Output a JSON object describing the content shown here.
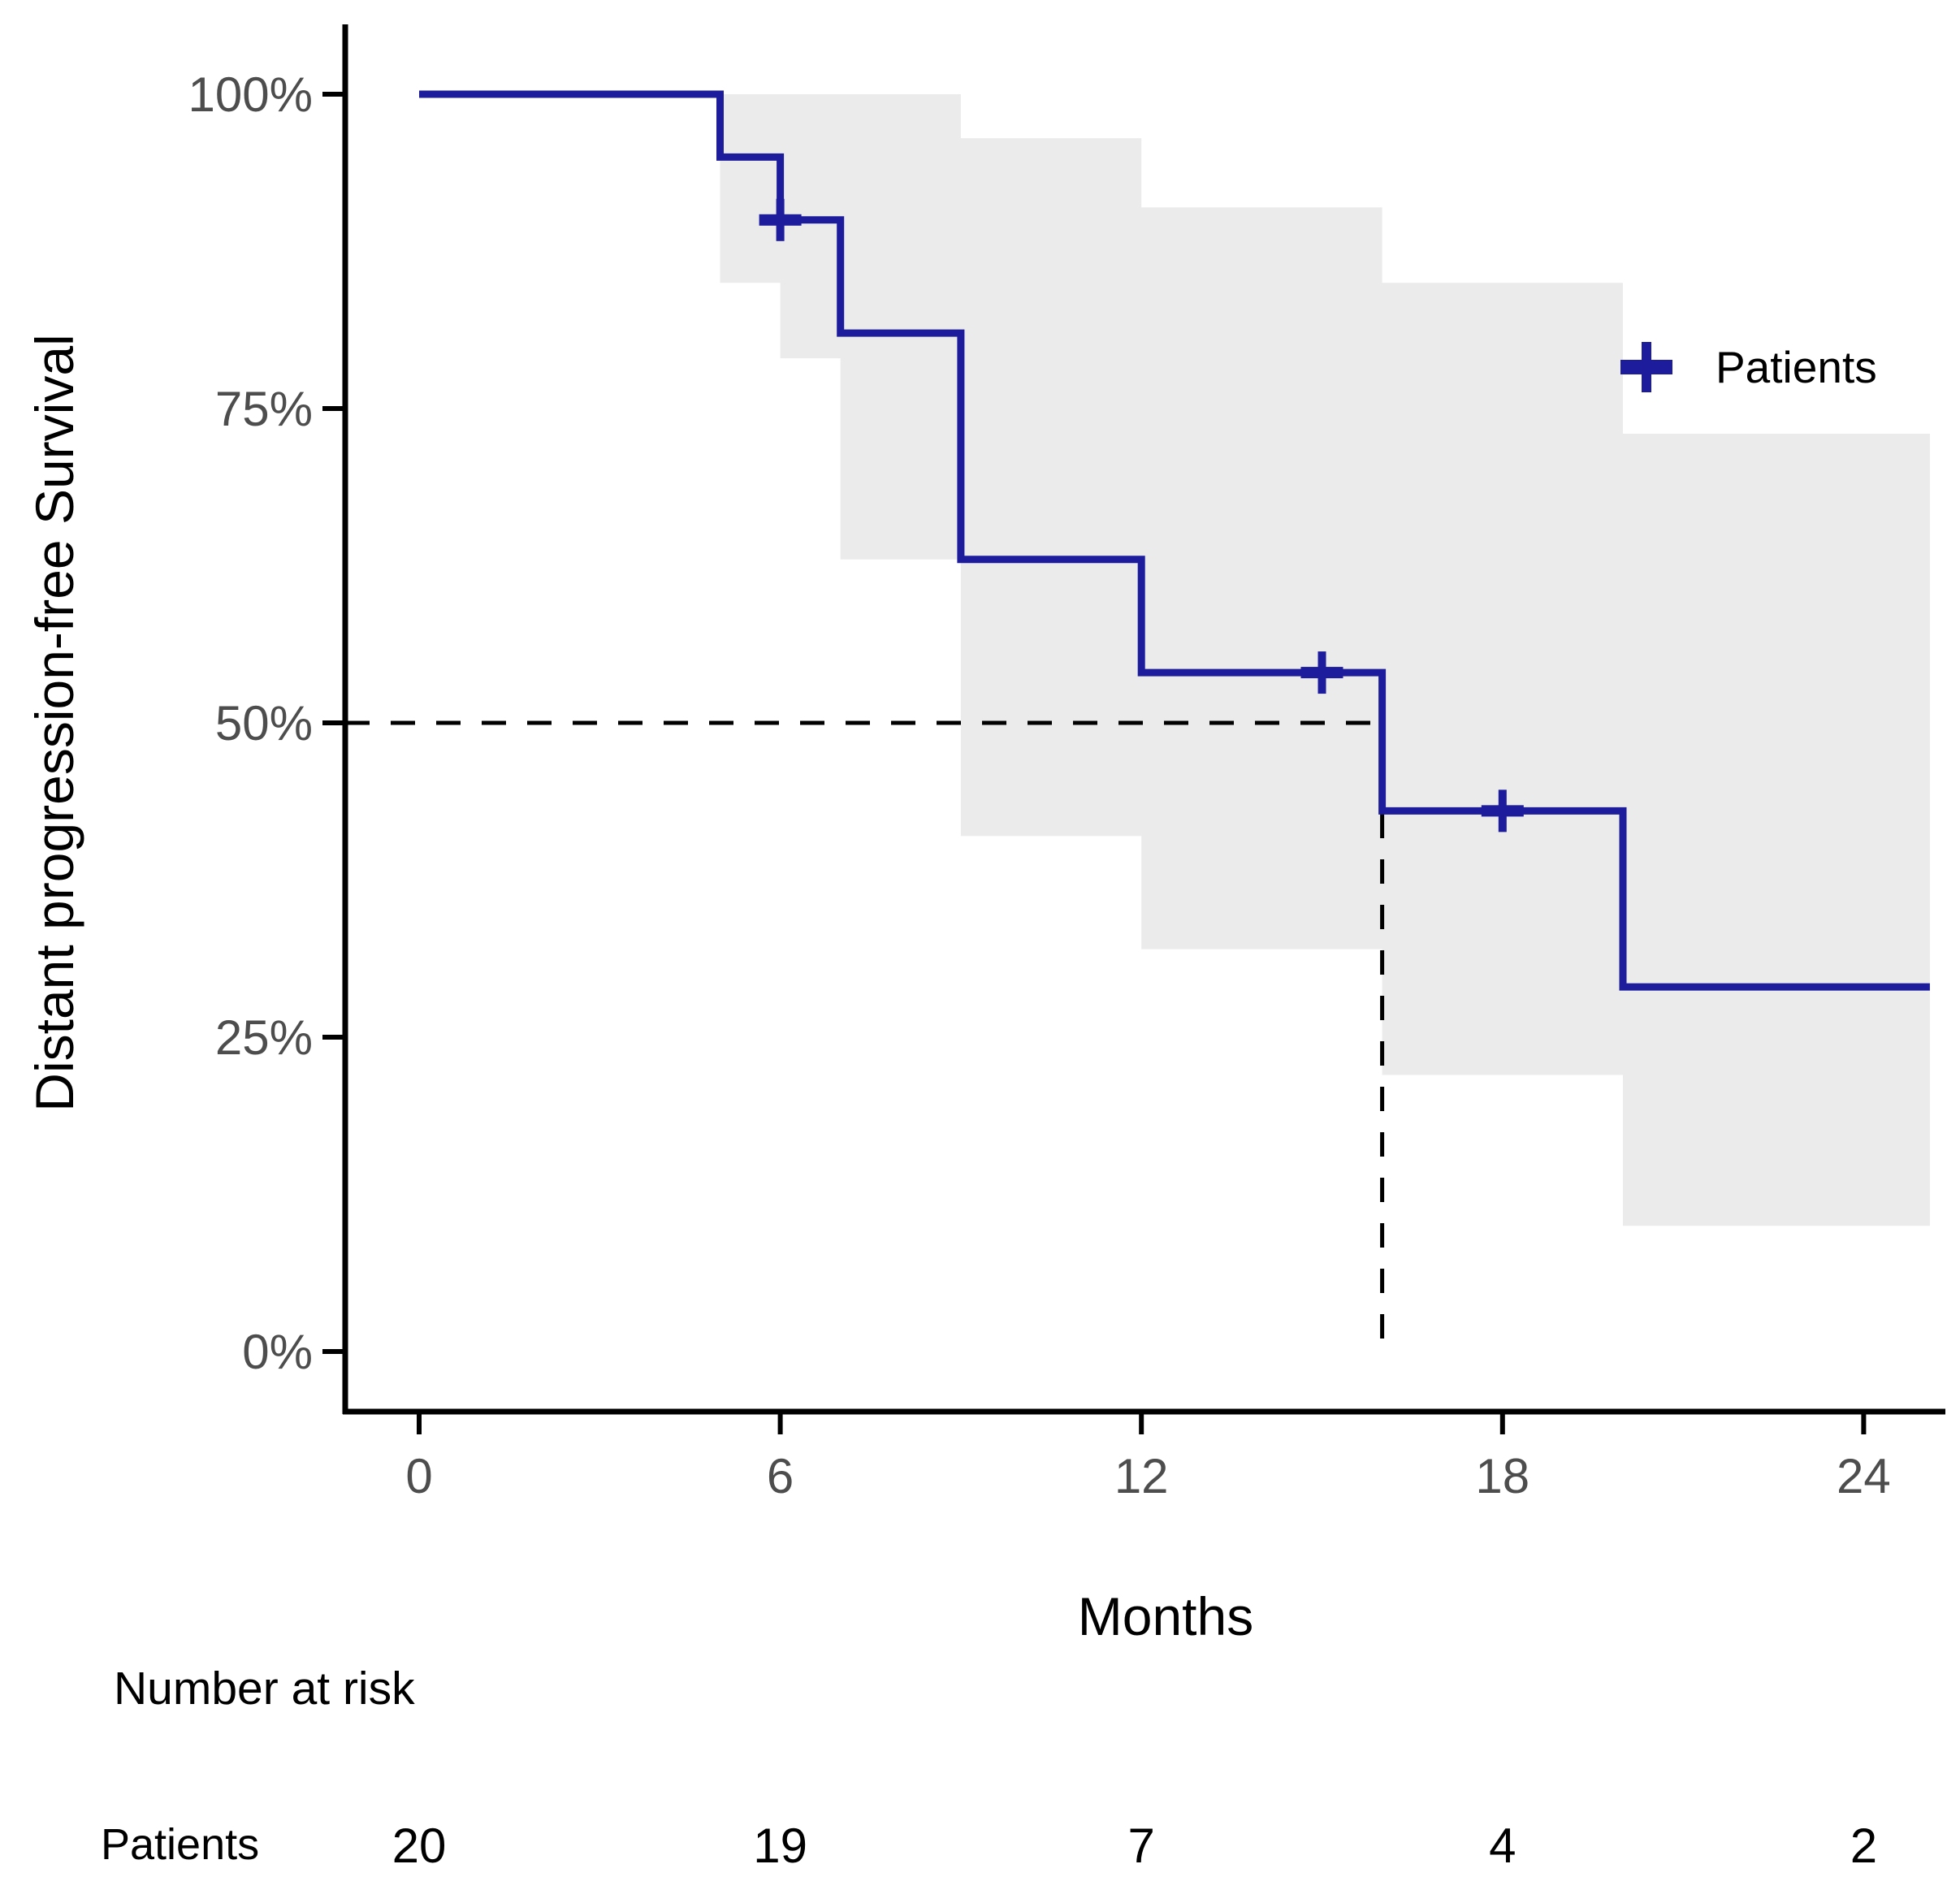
{
  "chart_data": {
    "type": "line",
    "subtype": "kaplan-meier-step",
    "title": "",
    "xlabel": "Months",
    "ylabel": "Distant progression-free Survival",
    "x_ticks": [
      0,
      6,
      12,
      18,
      24
    ],
    "y_ticks": [
      {
        "value": 0,
        "label": "0%"
      },
      {
        "value": 25,
        "label": "25%"
      },
      {
        "value": 50,
        "label": "50%"
      },
      {
        "value": 75,
        "label": "75%"
      },
      {
        "value": 100,
        "label": "100%"
      }
    ],
    "xlim": [
      -1.25,
      25.6
    ],
    "ylim": [
      0,
      105
    ],
    "grid": "off",
    "legend": {
      "position": "right",
      "entries": [
        {
          "label": "Patients",
          "marker": "plus-cross",
          "color": "#1c1c9c"
        }
      ]
    },
    "series": [
      {
        "name": "Patients",
        "color": "#1c1c9c",
        "steps": [
          [
            0,
            100
          ],
          [
            5,
            95
          ],
          [
            6,
            90
          ],
          [
            7,
            81
          ],
          [
            9,
            63
          ],
          [
            12,
            54
          ],
          [
            16,
            43
          ],
          [
            20,
            29
          ]
        ],
        "end_month": 25.1,
        "censor_marks": [
          [
            6,
            90
          ],
          [
            15,
            54
          ],
          [
            18,
            43
          ]
        ]
      }
    ],
    "confidence_band": {
      "color": "#ebebeb",
      "intervals": [
        {
          "from": 5,
          "to": 6,
          "upper": 100,
          "lower": 85
        },
        {
          "from": 6,
          "to": 7,
          "upper": 100,
          "lower": 79
        },
        {
          "from": 7,
          "to": 9,
          "upper": 100,
          "lower": 63
        },
        {
          "from": 9,
          "to": 12,
          "upper": 96.5,
          "lower": 41
        },
        {
          "from": 12,
          "to": 16,
          "upper": 91,
          "lower": 32
        },
        {
          "from": 16,
          "to": 20,
          "upper": 85,
          "lower": 22
        },
        {
          "from": 20,
          "to": 25.1,
          "upper": 73,
          "lower": 10
        }
      ]
    },
    "median_line": {
      "x": 16,
      "y": 50,
      "style": "dashed",
      "color": "#000000"
    },
    "risk_table": {
      "title": "Number at risk",
      "rows": [
        {
          "label": "Patients",
          "values": [
            "20",
            "19",
            "7",
            "4",
            "2"
          ]
        }
      ]
    },
    "axis_color": "#000000",
    "tick_label_color": "#4d4d4d"
  }
}
